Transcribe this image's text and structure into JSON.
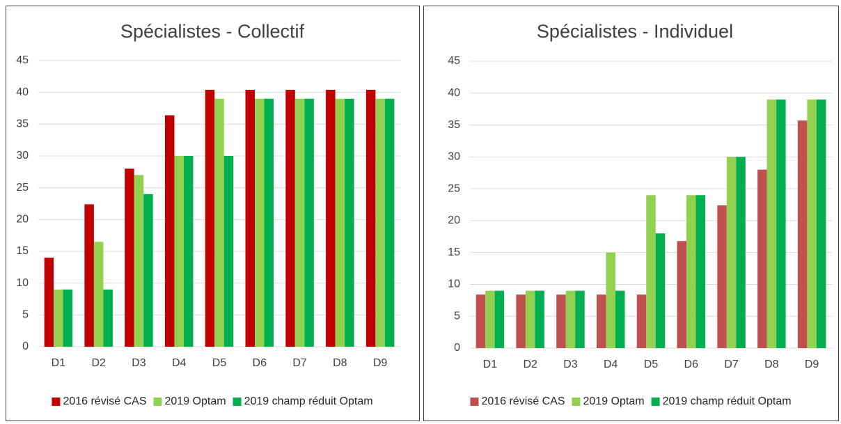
{
  "chart_data": [
    {
      "type": "bar",
      "title": "Spécialistes - Collectif",
      "categories": [
        "D1",
        "D2",
        "D3",
        "D4",
        "D5",
        "D6",
        "D7",
        "D8",
        "D9"
      ],
      "series": [
        {
          "name": "2016 révisé CAS",
          "color": "#c00000",
          "values": [
            14,
            22.4,
            28,
            36.4,
            40.4,
            40.4,
            40.4,
            40.4,
            40.4
          ]
        },
        {
          "name": "2019 Optam",
          "color": "#92d050",
          "values": [
            9,
            16.5,
            27,
            30,
            39,
            39,
            39,
            39,
            39
          ]
        },
        {
          "name": "2019 champ réduit Optam",
          "color": "#00b050",
          "values": [
            9,
            9,
            24,
            30,
            30,
            39,
            39,
            39,
            39
          ]
        }
      ],
      "ylim": [
        0,
        45
      ],
      "yticks": [
        0,
        5,
        10,
        15,
        20,
        25,
        30,
        35,
        40,
        45
      ],
      "grid": true,
      "legend": "bottom"
    },
    {
      "type": "bar",
      "title": "Spécialistes - Individuel",
      "categories": [
        "D1",
        "D2",
        "D3",
        "D4",
        "D5",
        "D6",
        "D7",
        "D8",
        "D9"
      ],
      "series": [
        {
          "name": "2016 révisé CAS",
          "color": "#c0504d",
          "values": [
            8.4,
            8.4,
            8.4,
            8.4,
            8.4,
            16.8,
            22.4,
            28,
            35.7
          ]
        },
        {
          "name": "2019 Optam",
          "color": "#92d050",
          "values": [
            9,
            9,
            9,
            15,
            24,
            24,
            30,
            39,
            39
          ]
        },
        {
          "name": "2019 champ réduit Optam",
          "color": "#00b050",
          "values": [
            9,
            9,
            9,
            9,
            18,
            24,
            30,
            39,
            39
          ]
        }
      ],
      "ylim": [
        0,
        45
      ],
      "yticks": [
        0,
        5,
        10,
        15,
        20,
        25,
        30,
        35,
        40,
        45
      ],
      "grid": true,
      "legend": "bottom"
    }
  ]
}
